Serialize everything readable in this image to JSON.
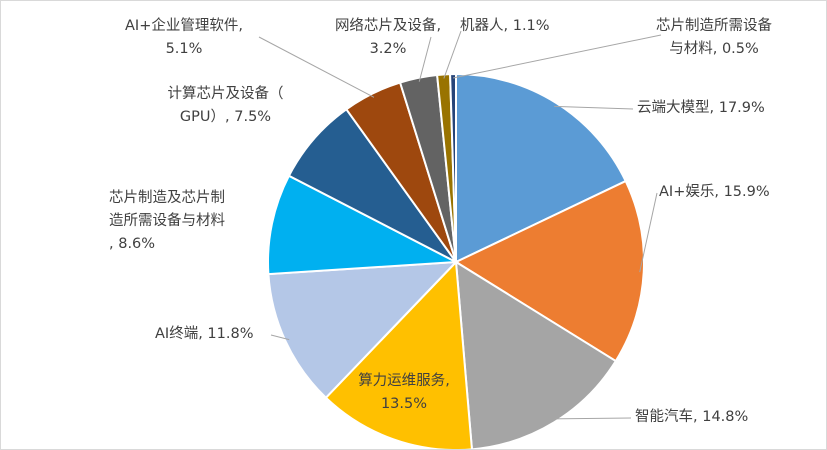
{
  "chart_data": {
    "type": "pie",
    "title": "",
    "slices": [
      {
        "name": "云端大模型",
        "value": 17.9,
        "value_label": "17.9%",
        "color": "#5b9bd5"
      },
      {
        "name": "AI+娱乐",
        "value": 15.9,
        "value_label": "15.9%",
        "color": "#ed7d31"
      },
      {
        "name": "智能汽车",
        "value": 14.8,
        "value_label": "14.8%",
        "color": "#a5a5a5"
      },
      {
        "name": "算力运维服务",
        "value": 13.5,
        "value_label": "13.5%",
        "color": "#ffc000"
      },
      {
        "name": "AI终端",
        "value": 11.8,
        "value_label": "11.8%",
        "color": "#b4c7e7"
      },
      {
        "name": "芯片制造及芯片制造所需设备与材料",
        "value": 8.6,
        "value_label": "8.6%",
        "color": "#00b0f0"
      },
      {
        "name": "计算芯片及设备（GPU）",
        "value": 7.5,
        "value_label": "7.5%",
        "color": "#255e91"
      },
      {
        "name": "AI+企业管理软件",
        "value": 5.1,
        "value_label": "5.1%",
        "color": "#9e480e"
      },
      {
        "name": "网络芯片及设备",
        "value": 3.2,
        "value_label": "3.2%",
        "color": "#636363"
      },
      {
        "name": "机器人",
        "value": 1.1,
        "value_label": "1.1%",
        "color": "#997300"
      },
      {
        "name": "芯片制造所需设备与材料",
        "value": 0.5,
        "value_label": "0.5%",
        "color": "#264478"
      }
    ],
    "legend": "none",
    "data_labels": "outside-with-leader-lines"
  }
}
